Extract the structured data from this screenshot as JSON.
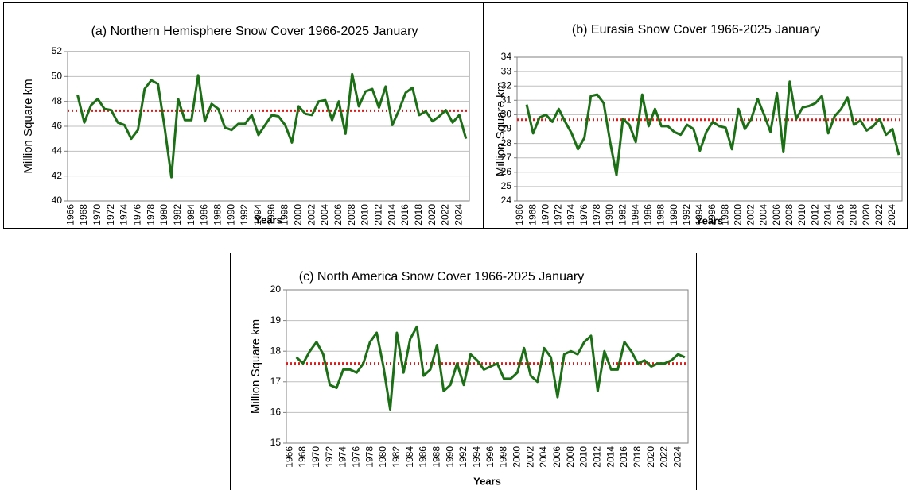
{
  "chart_data": [
    {
      "type": "line",
      "title": "(a) Northern Hemisphere Snow Cover 1966-2025 January",
      "y_label": "Million Square km",
      "x_label": "Years",
      "categories": [
        "1966",
        null,
        "1968",
        null,
        "1970",
        null,
        "1972",
        null,
        "1974",
        null,
        "1976",
        null,
        "1978",
        null,
        "1980",
        null,
        "1982",
        null,
        "1984",
        null,
        "1986",
        null,
        "1988",
        null,
        "1990",
        null,
        "1992",
        null,
        "1994",
        null,
        "1996",
        null,
        "1998",
        null,
        "2000",
        null,
        "2002",
        null,
        "2004",
        null,
        "2006",
        null,
        "2008",
        null,
        "2010",
        null,
        "2012",
        null,
        "2014",
        null,
        "2016",
        null,
        "2018",
        null,
        "2020",
        null,
        "2022",
        null,
        "2024",
        null
      ],
      "values": [
        null,
        48.5,
        46.3,
        47.7,
        48.2,
        47.4,
        47.3,
        46.3,
        46.1,
        45.0,
        45.7,
        49.0,
        49.7,
        49.4,
        45.9,
        41.9,
        48.2,
        46.5,
        46.5,
        50.1,
        46.4,
        47.8,
        47.4,
        45.9,
        45.7,
        46.2,
        46.2,
        46.9,
        45.3,
        46.1,
        46.9,
        46.8,
        46.1,
        44.7,
        47.6,
        47.0,
        46.9,
        48.0,
        48.1,
        46.5,
        48.0,
        45.4,
        50.2,
        47.6,
        48.8,
        49.0,
        47.5,
        49.2,
        46.1,
        47.3,
        48.7,
        49.1,
        46.9,
        47.2,
        46.4,
        46.8,
        47.3,
        46.3,
        46.9,
        45.0
      ],
      "color": "#1b6f14",
      "mean": 47.25,
      "mean_color": "#e01b1b",
      "ylim": [
        40,
        52
      ],
      "yticks": [
        40,
        42,
        44,
        46,
        48,
        50,
        52
      ],
      "grid": true
    },
    {
      "type": "line",
      "title": "(b) Eurasia Snow Cover 1966-2025 January",
      "y_label": "Million Square km",
      "x_label": "Years",
      "categories": [
        "1966",
        null,
        "1968",
        null,
        "1970",
        null,
        "1972",
        null,
        "1974",
        null,
        "1976",
        null,
        "1978",
        null,
        "1980",
        null,
        "1982",
        null,
        "1984",
        null,
        "1986",
        null,
        "1988",
        null,
        "1990",
        null,
        "1992",
        null,
        "1994",
        null,
        "1996",
        null,
        "1998",
        null,
        "2000",
        null,
        "2002",
        null,
        "2004",
        null,
        "2006",
        null,
        "2008",
        null,
        "2010",
        null,
        "2012",
        null,
        "2014",
        null,
        "2016",
        null,
        "2018",
        null,
        "2020",
        null,
        "2022",
        null,
        "2024",
        null
      ],
      "values": [
        null,
        30.7,
        28.7,
        29.8,
        30.0,
        29.5,
        30.4,
        29.5,
        28.7,
        27.6,
        28.4,
        31.3,
        31.4,
        30.8,
        28.1,
        25.8,
        29.7,
        29.3,
        28.1,
        31.4,
        29.2,
        30.4,
        29.2,
        29.2,
        28.8,
        28.6,
        29.3,
        29.0,
        27.5,
        28.8,
        29.5,
        29.2,
        29.1,
        27.6,
        30.4,
        29.0,
        29.7,
        31.1,
        30.0,
        28.8,
        31.5,
        27.4,
        32.3,
        29.7,
        30.5,
        30.6,
        30.8,
        31.3,
        28.7,
        29.9,
        30.4,
        31.2,
        29.3,
        29.6,
        28.9,
        29.2,
        29.7,
        28.6,
        29.0,
        27.2
      ],
      "color": "#1b6f14",
      "mean": 29.65,
      "mean_color": "#e01b1b",
      "ylim": [
        24,
        34
      ],
      "yticks": [
        24,
        25,
        26,
        27,
        28,
        29,
        30,
        31,
        32,
        33,
        34
      ],
      "grid": true
    },
    {
      "type": "line",
      "title": "(c) North America Snow Cover 1966-2025 January",
      "y_label": "Million Square km",
      "x_label": "Years",
      "categories": [
        "1966",
        null,
        "1968",
        null,
        "1970",
        null,
        "1972",
        null,
        "1974",
        null,
        "1976",
        null,
        "1978",
        null,
        "1980",
        null,
        "1982",
        null,
        "1984",
        null,
        "1986",
        null,
        "1988",
        null,
        "1990",
        null,
        "1992",
        null,
        "1994",
        null,
        "1996",
        null,
        "1998",
        null,
        "2000",
        null,
        "2002",
        null,
        "2004",
        null,
        "2006",
        null,
        "2008",
        null,
        "2010",
        null,
        "2012",
        null,
        "2014",
        null,
        "2016",
        null,
        "2018",
        null,
        "2020",
        null,
        "2022",
        null,
        "2024",
        null
      ],
      "values": [
        null,
        17.8,
        17.6,
        18.0,
        18.3,
        17.9,
        16.9,
        16.8,
        17.4,
        17.4,
        17.3,
        17.6,
        18.3,
        18.6,
        17.5,
        16.1,
        18.6,
        17.3,
        18.4,
        18.8,
        17.2,
        17.4,
        18.2,
        16.7,
        16.9,
        17.6,
        16.9,
        17.9,
        17.7,
        17.4,
        17.5,
        17.6,
        17.1,
        17.1,
        17.3,
        18.1,
        17.2,
        17.0,
        18.1,
        17.8,
        16.5,
        17.9,
        18.0,
        17.9,
        18.3,
        18.5,
        16.7,
        18.0,
        17.4,
        17.4,
        18.3,
        18.0,
        17.6,
        17.7,
        17.5,
        17.6,
        17.6,
        17.7,
        17.9,
        17.8
      ],
      "color": "#1b6f14",
      "mean": 17.6,
      "mean_color": "#e01b1b",
      "ylim": [
        15,
        20
      ],
      "yticks": [
        15,
        16,
        17,
        18,
        19,
        20
      ],
      "grid": true
    }
  ]
}
